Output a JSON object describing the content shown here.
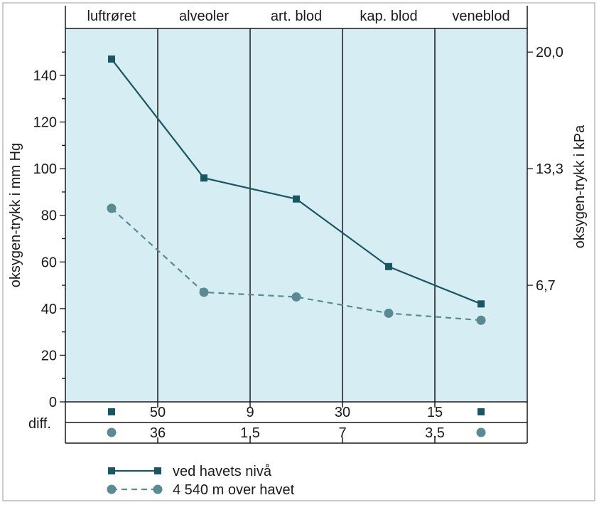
{
  "chart_data": {
    "type": "line",
    "categories": [
      "luftrøret",
      "alveoler",
      "art. blod",
      "kap. blod",
      "veneblod"
    ],
    "ylabel": "oksygen-trykk i mm Hg",
    "y2label": "oksygen-trykk i kPa",
    "ylim": [
      0,
      160
    ],
    "yticks": [
      0,
      20,
      40,
      60,
      80,
      100,
      120,
      140
    ],
    "y2ticks": [
      {
        "value": 50,
        "label": "6,7"
      },
      {
        "value": 100,
        "label": "13,3"
      },
      {
        "value": 150,
        "label": "20,0"
      }
    ],
    "series": [
      {
        "name": "ved havets nivå",
        "style": "solid",
        "marker": "square",
        "color": "#1a5563",
        "values": [
          147,
          96,
          87,
          58,
          42
        ]
      },
      {
        "name": "4 540 m over havet",
        "style": "dashed",
        "marker": "circle",
        "color": "#5a8a93",
        "values": [
          83,
          47,
          45,
          38,
          35
        ]
      }
    ],
    "diff_label": "diff.",
    "diff_rows": [
      {
        "series": 0,
        "values": [
          "50",
          "9",
          "30",
          "15"
        ]
      },
      {
        "series": 1,
        "values": [
          "36",
          "1,5",
          "7",
          "3,5"
        ]
      }
    ],
    "background": "#d6edf3",
    "grid": false,
    "legend_position": "bottom-left"
  }
}
